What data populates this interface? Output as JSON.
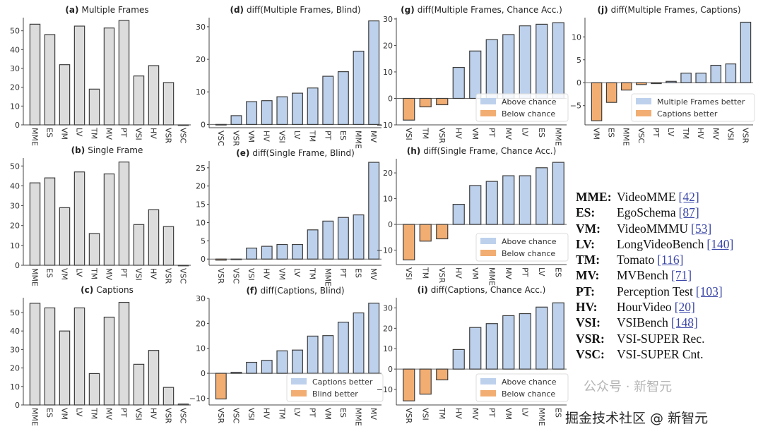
{
  "colors": {
    "bar_gray": "#dcdcdc",
    "positive_blue": "#bdd1ec",
    "negative_orange": "#f2ad72",
    "edge": "#3d3d3d"
  },
  "chart_data": [
    {
      "type": "bar",
      "label": "(a)",
      "title": "Multiple Frames",
      "categories": [
        "MME",
        "ES",
        "VM",
        "LV",
        "TM",
        "MV",
        "PT",
        "VSI",
        "HV",
        "VSR",
        "VSC"
      ],
      "values": [
        53.5,
        48,
        32,
        52.5,
        19,
        51.5,
        55.5,
        26,
        31.5,
        22.5,
        0
      ],
      "ylim": [
        0,
        57
      ],
      "yticks": [
        0,
        10,
        20,
        30,
        40,
        50
      ],
      "colored": false
    },
    {
      "type": "bar",
      "label": "(b)",
      "title": "Single Frame",
      "categories": [
        "MME",
        "ES",
        "VM",
        "LV",
        "TM",
        "MV",
        "PT",
        "VSI",
        "HV",
        "VSR",
        "VSC"
      ],
      "values": [
        41.5,
        44,
        29,
        47,
        16,
        46,
        52,
        20.5,
        28,
        19.5,
        0
      ],
      "ylim": [
        0,
        54
      ],
      "yticks": [
        0,
        10,
        20,
        30,
        40,
        50
      ],
      "colored": false
    },
    {
      "type": "bar",
      "label": "(c)",
      "title": "Captions",
      "categories": [
        "MME",
        "ES",
        "VM",
        "LV",
        "TM",
        "MV",
        "PT",
        "VSI",
        "HV",
        "VSR",
        "VSC"
      ],
      "values": [
        55,
        52.5,
        40,
        52.5,
        17,
        47.5,
        55.5,
        22,
        29.5,
        9.5,
        0.5
      ],
      "ylim": [
        0,
        58
      ],
      "yticks": [
        0,
        10,
        20,
        30,
        40,
        50
      ],
      "colored": false
    },
    {
      "type": "bar",
      "label": "(d)",
      "title": "diff(Multiple Frames, Blind)",
      "categories": [
        "VSC",
        "VSR",
        "VM",
        "HV",
        "VSI",
        "LV",
        "TM",
        "PT",
        "ES",
        "MME",
        "MV"
      ],
      "values": [
        0,
        2.7,
        7,
        7.3,
        8.5,
        9.6,
        11.2,
        14.8,
        16.2,
        22.5,
        31.8
      ],
      "ylim": [
        -1,
        32.8
      ],
      "yticks": [
        0,
        10,
        20,
        30
      ],
      "colored": true
    },
    {
      "type": "bar",
      "label": "(e)",
      "title": "diff(Single Frame, Blind)",
      "categories": [
        "VSR",
        "VSC",
        "VSI",
        "HV",
        "VM",
        "LV",
        "TM",
        "MME",
        "PT",
        "ES",
        "MV"
      ],
      "values": [
        -0.3,
        0,
        3,
        3.5,
        4,
        4,
        8,
        10.4,
        11.4,
        12.1,
        26.5
      ],
      "ylim": [
        -1.7,
        26.9
      ],
      "yticks": [
        0,
        5,
        10,
        15,
        20,
        25
      ],
      "colored": true
    },
    {
      "type": "bar",
      "label": "(f)",
      "title": "diff(Captions, Blind)",
      "categories": [
        "VSR",
        "VSC",
        "VSI",
        "HV",
        "TM",
        "LV",
        "PT",
        "VM",
        "ES",
        "MME",
        "MV"
      ],
      "values": [
        -10.3,
        0.4,
        4.4,
        5.2,
        9,
        9.3,
        14.9,
        15.1,
        20.5,
        24.2,
        28.1
      ],
      "ylim": [
        -12.7,
        30
      ],
      "yticks": [
        -10,
        0,
        10,
        20,
        30
      ],
      "colored": true,
      "legend": {
        "position": "lower-right",
        "positive": "Captions better",
        "negative": "Blind better"
      }
    },
    {
      "type": "bar",
      "label": "(g)",
      "title": "diff(Multiple Frames, Chance Acc.)",
      "categories": [
        "VSI",
        "TM",
        "VSR",
        "HV",
        "VM",
        "PT",
        "MV",
        "LV",
        "ES",
        "MME"
      ],
      "values": [
        -8.2,
        -3.2,
        -2.4,
        11.7,
        17.9,
        22.2,
        24.1,
        27.4,
        28,
        28.6
      ],
      "ylim": [
        -10,
        30.5
      ],
      "yticks": [
        -10,
        0,
        10,
        20,
        30
      ],
      "colored": true,
      "legend": {
        "position": "lower-right",
        "positive": "Above chance",
        "negative": "Below chance"
      }
    },
    {
      "type": "bar",
      "label": "(h)",
      "title": "diff(Single Frame, Chance Acc.)",
      "categories": [
        "VSI",
        "TM",
        "VSR",
        "HV",
        "VM",
        "MME",
        "MV",
        "PT",
        "LV",
        "ES"
      ],
      "values": [
        -13.8,
        -6.5,
        -5.6,
        7.8,
        15.1,
        16.7,
        18.9,
        18.9,
        22,
        24.1
      ],
      "ylim": [
        -15.6,
        25.5
      ],
      "yticks": [
        -10,
        0,
        10,
        20
      ],
      "colored": true,
      "legend": {
        "position": "lower-right",
        "positive": "Above chance",
        "negative": "Below chance"
      }
    },
    {
      "type": "bar",
      "label": "(i)",
      "title": "diff(Captions, Chance Acc.)",
      "categories": [
        "VSR",
        "VSI",
        "TM",
        "HV",
        "MV",
        "PT",
        "VM",
        "LV",
        "MME",
        "ES"
      ],
      "values": [
        -15.6,
        -12.3,
        -5.3,
        9.6,
        20.4,
        22.3,
        26.2,
        27.2,
        30.4,
        32.5
      ],
      "ylim": [
        -17.6,
        35
      ],
      "yticks": [
        -10,
        0,
        10,
        20,
        30
      ],
      "colored": true,
      "legend": {
        "position": "lower-right",
        "positive": "Above chance",
        "negative": "Below chance"
      }
    },
    {
      "type": "bar",
      "label": "(j)",
      "title": "diff(Multiple Frames, Captions)",
      "categories": [
        "VM",
        "ES",
        "MME",
        "VSC",
        "PT",
        "LV",
        "TM",
        "HV",
        "MV",
        "VSI",
        "VSR"
      ],
      "values": [
        -8.3,
        -4.3,
        -1.6,
        -0.4,
        -0.2,
        0.3,
        2.1,
        2.1,
        3.8,
        4.1,
        13.2
      ],
      "ylim": [
        -9.2,
        14.2
      ],
      "yticks": [
        -5,
        0,
        5,
        10
      ],
      "colored": true,
      "legend": {
        "position": "lower-right",
        "positive": "Multiple Frames better",
        "negative": "Captions better"
      }
    }
  ],
  "abbreviations": [
    {
      "abbr": "MME:",
      "name": "VideoMME",
      "ref": "[42]"
    },
    {
      "abbr": "ES:",
      "name": "EgoSchema",
      "ref": "[87]"
    },
    {
      "abbr": "VM:",
      "name": "VideoMMMU",
      "ref": "[53]"
    },
    {
      "abbr": "LV:",
      "name": "LongVideoBench",
      "ref": "[140]"
    },
    {
      "abbr": "TM:",
      "name": "Tomato",
      "ref": "[116]"
    },
    {
      "abbr": "MV:",
      "name": "MVBench",
      "ref": "[71]"
    },
    {
      "abbr": "PT:",
      "name": "Perception Test",
      "ref": "[103]"
    },
    {
      "abbr": "HV:",
      "name": "HourVideo",
      "ref": "[20]"
    },
    {
      "abbr": "VSI:",
      "name": "VSIBench",
      "ref": "[148]"
    },
    {
      "abbr": "VSR:",
      "name": "VSI-SUPER Rec.",
      "ref": ""
    },
    {
      "abbr": "VSC:",
      "name": "VSI-SUPER Cnt.",
      "ref": ""
    }
  ],
  "watermark": {
    "line1": "公众号 · 新智元",
    "line2": "掘金技术社区 @ 新智元"
  }
}
